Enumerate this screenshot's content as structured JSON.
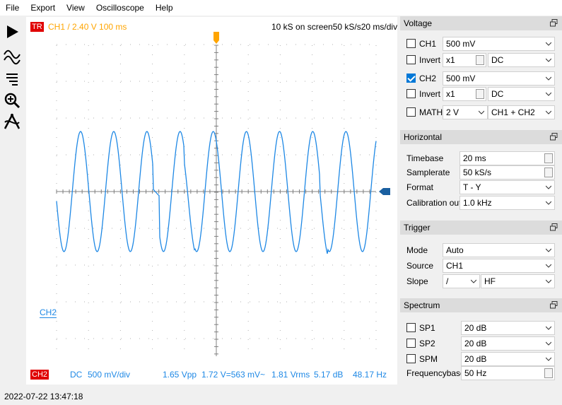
{
  "menu": [
    "File",
    "Export",
    "View",
    "Oscilloscope",
    "Help"
  ],
  "toolbar": {
    "icons": [
      "play-icon",
      "waveform-icon",
      "zoom-in-icon",
      "measure-icon",
      "cursor-icon"
    ]
  },
  "scope": {
    "trigger_badge": "TR",
    "trigger_info": "CH1  /  2.40 V   100 ms",
    "top_right": "10 kS on screen50 kS/s20 ms/div",
    "ch2_marker": "CH2",
    "bottom_badge": "CH2",
    "bottom_coupling": "DC",
    "bottom_scale": "500 mV/div",
    "bottom_vpp": "1.65 Vpp",
    "bottom_v": "1.72 V=563 mV~",
    "bottom_vrms": "1.81 Vrms",
    "bottom_db": "5.17 dB",
    "bottom_freq": "48.17 Hz",
    "colors": {
      "trace": "#1e88e5",
      "trigger": "#ffa500",
      "badge": "#e00000",
      "grid": "#808080"
    }
  },
  "voltage": {
    "title": "Voltage",
    "ch1_label": "CH1",
    "ch1_gain": "500 mV",
    "ch1_checked": false,
    "invert1_label": "Invert",
    "invert1_mult": "x1",
    "invert1_coupling": "DC",
    "ch2_label": "CH2",
    "ch2_gain": "500 mV",
    "ch2_checked": true,
    "invert2_label": "Invert",
    "invert2_mult": "x1",
    "invert2_coupling": "DC",
    "math_label": "MATH",
    "math_gain": "2 V",
    "math_mode": "CH1 + CH2"
  },
  "horizontal": {
    "title": "Horizontal",
    "timebase_label": "Timebase",
    "timebase_value": "20 ms",
    "samplerate_label": "Samplerate",
    "samplerate_value": "50 kS/s",
    "format_label": "Format",
    "format_value": "T - Y",
    "calibration_label": "Calibration out",
    "calibration_value": "1.0 kHz"
  },
  "trigger": {
    "title": "Trigger",
    "mode_label": "Mode",
    "mode_value": "Auto",
    "source_label": "Source",
    "source_value": "CH1",
    "slope_label": "Slope",
    "slope_value": "/",
    "slope_filter": "HF"
  },
  "spectrum": {
    "title": "Spectrum",
    "sp1_label": "SP1",
    "sp1_value": "20 dB",
    "sp2_label": "SP2",
    "sp2_value": "20 dB",
    "spm_label": "SPM",
    "spm_value": "20 dB",
    "freqbase_label": "Frequencybase",
    "freqbase_value": "50 Hz"
  },
  "status": {
    "timestamp": "2022-07-22 13:47:18"
  }
}
